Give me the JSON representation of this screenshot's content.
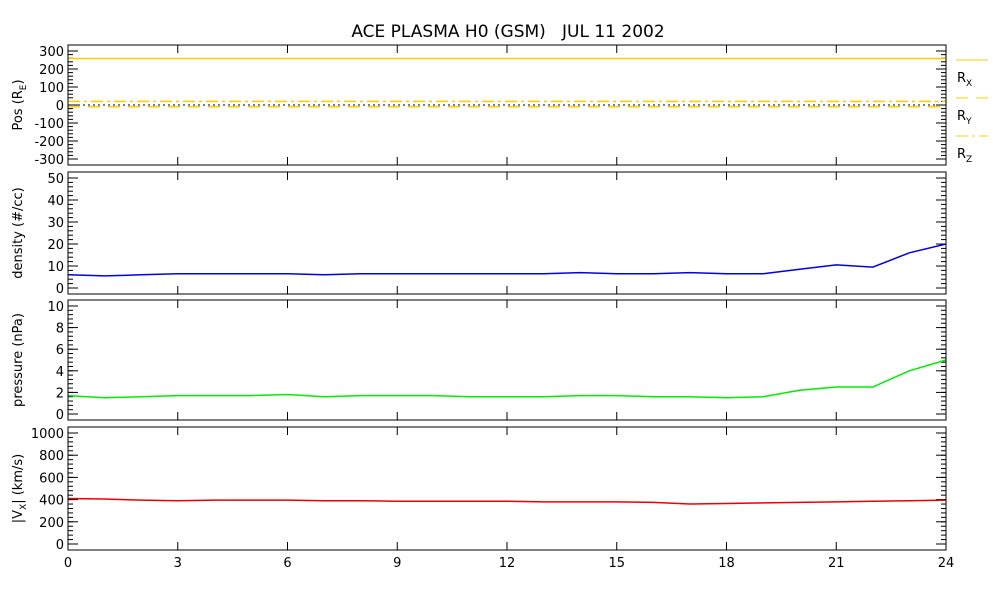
{
  "chart_data": [
    {
      "type": "line",
      "title": "ACE PLASMA H0 (GSM)   JUL 11 2002",
      "ylabel": "Pos (R",
      "ylabel_sub": "E",
      "ylabel_end": ")",
      "ylim": [
        -300,
        300
      ],
      "yticks": [
        300,
        200,
        100,
        0,
        -100,
        -200,
        -300
      ],
      "x": [
        0,
        24
      ],
      "series": [
        {
          "name": "R",
          "sub": "X",
          "values": [
            258,
            258
          ],
          "color": "#ffcc00",
          "dash": "solid"
        },
        {
          "name": "R",
          "sub": "Y",
          "values": [
            -10,
            -10
          ],
          "color": "#ffcc00",
          "dash": "dashed"
        },
        {
          "name": "R",
          "sub": "Z",
          "values": [
            20,
            20
          ],
          "color": "#ffcc00",
          "dash": "dashdot"
        }
      ],
      "zero_line": true,
      "legend": "right"
    },
    {
      "type": "line",
      "ylabel": "density (#/cc)",
      "ylim": [
        0,
        50
      ],
      "yticks": [
        50,
        40,
        30,
        20,
        10,
        0
      ],
      "x": [
        0,
        1,
        2,
        3,
        4,
        5,
        6,
        7,
        8,
        9,
        10,
        11,
        12,
        13,
        14,
        15,
        16,
        17,
        18,
        19,
        20,
        21,
        22,
        23,
        24
      ],
      "series": [
        {
          "name": "density",
          "color": "#0000ee",
          "values": [
            6,
            5.5,
            6,
            6.5,
            6.5,
            6.5,
            6.5,
            6,
            6.5,
            6.5,
            6.5,
            6.5,
            6.5,
            6.5,
            7,
            6.5,
            6.5,
            7,
            6.5,
            6.5,
            8.5,
            10.5,
            9.5,
            16,
            20
          ]
        }
      ]
    },
    {
      "type": "line",
      "ylabel": "pressure (nPa)",
      "ylim": [
        0,
        10
      ],
      "yticks": [
        10,
        8,
        6,
        4,
        2,
        0
      ],
      "x": [
        0,
        1,
        2,
        3,
        4,
        5,
        6,
        7,
        8,
        9,
        10,
        11,
        12,
        13,
        14,
        15,
        16,
        17,
        18,
        19,
        20,
        21,
        22,
        23,
        24
      ],
      "series": [
        {
          "name": "pressure",
          "color": "#00ee00",
          "values": [
            1.7,
            1.5,
            1.6,
            1.7,
            1.7,
            1.7,
            1.8,
            1.6,
            1.7,
            1.7,
            1.7,
            1.6,
            1.6,
            1.6,
            1.7,
            1.7,
            1.6,
            1.6,
            1.5,
            1.6,
            2.2,
            2.5,
            2.5,
            4.0,
            5.0
          ]
        }
      ]
    },
    {
      "type": "line",
      "ylabel": "|V",
      "ylabel_sub": "X",
      "ylabel_end": "| (km/s)",
      "ylim": [
        0,
        1000
      ],
      "yticks": [
        1000,
        800,
        600,
        400,
        200,
        0
      ],
      "x": [
        0,
        1,
        2,
        3,
        4,
        5,
        6,
        7,
        8,
        9,
        10,
        11,
        12,
        13,
        14,
        15,
        16,
        17,
        18,
        19,
        20,
        21,
        22,
        23,
        24
      ],
      "series": [
        {
          "name": "Vx",
          "color": "#ee0000",
          "values": [
            410,
            405,
            395,
            390,
            395,
            395,
            395,
            390,
            390,
            385,
            385,
            385,
            385,
            380,
            380,
            380,
            375,
            360,
            365,
            370,
            375,
            380,
            385,
            390,
            395
          ]
        }
      ],
      "xticks": [
        0,
        3,
        6,
        9,
        12,
        15,
        18,
        21,
        24
      ],
      "xlim": [
        0,
        24
      ]
    }
  ]
}
